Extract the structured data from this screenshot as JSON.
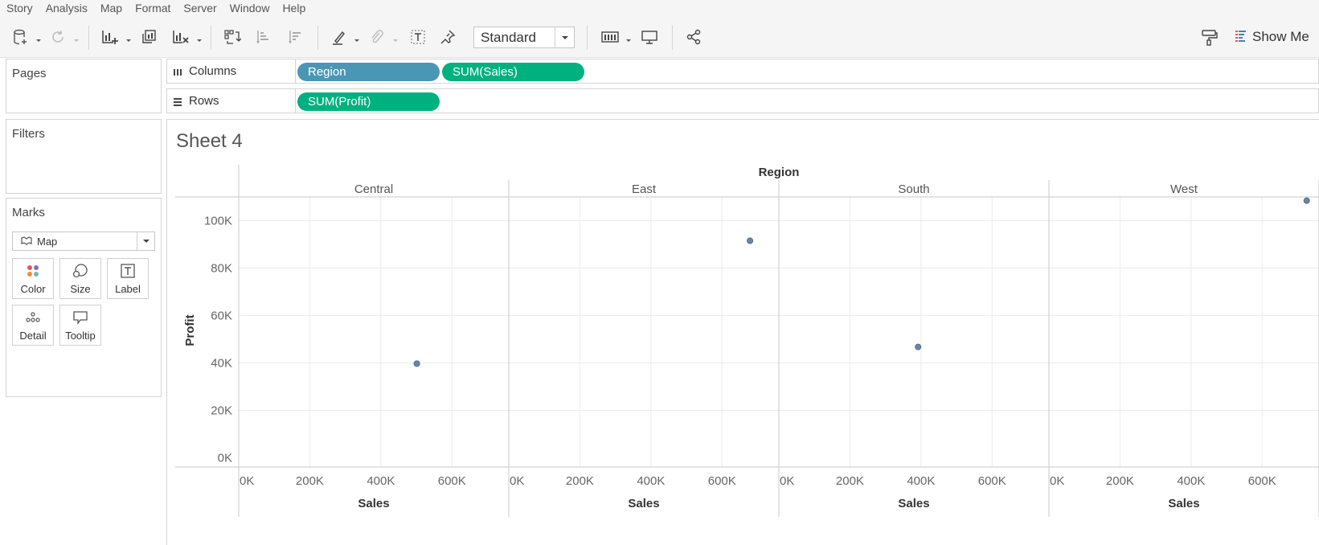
{
  "menu": [
    "Story",
    "Analysis",
    "Map",
    "Format",
    "Server",
    "Window",
    "Help"
  ],
  "toolbar": {
    "fit_value": "Standard",
    "show_me_label": "Show Me"
  },
  "panels": {
    "pages_title": "Pages",
    "filters_title": "Filters",
    "marks_title": "Marks",
    "mark_type": "Map",
    "mark_buttons": [
      "Color",
      "Size",
      "Label",
      "Detail",
      "Tooltip"
    ]
  },
  "shelves": {
    "columns_label": "Columns",
    "rows_label": "Rows",
    "columns_pills": [
      "Region",
      "SUM(Sales)"
    ],
    "rows_pills": [
      "SUM(Profit)"
    ]
  },
  "sheet_title": "Sheet 4",
  "colors": {
    "dimension_pill": "#4a97b5",
    "measure_pill": "#00b180",
    "mark": "#6a86a6"
  },
  "chart_data": {
    "type": "scatter",
    "header_title": "Region",
    "panes": [
      {
        "region": "Central",
        "sales": 501240,
        "profit": 39706
      },
      {
        "region": "East",
        "sales": 678781,
        "profit": 91523
      },
      {
        "region": "South",
        "sales": 391722,
        "profit": 46749
      },
      {
        "region": "West",
        "sales": 725458,
        "profit": 108418
      }
    ],
    "xlabel": "Sales",
    "ylabel": "Profit",
    "x_ticks": [
      "0K",
      "200K",
      "400K",
      "600K"
    ],
    "x_tick_values": [
      0,
      200000,
      400000,
      600000
    ],
    "y_ticks": [
      "0K",
      "20K",
      "40K",
      "60K",
      "80K",
      "100K"
    ],
    "y_tick_values": [
      0,
      20000,
      40000,
      60000,
      80000,
      100000
    ],
    "xlim": [
      0,
      760000
    ],
    "ylim": [
      -3900,
      110000
    ],
    "grid": true
  }
}
